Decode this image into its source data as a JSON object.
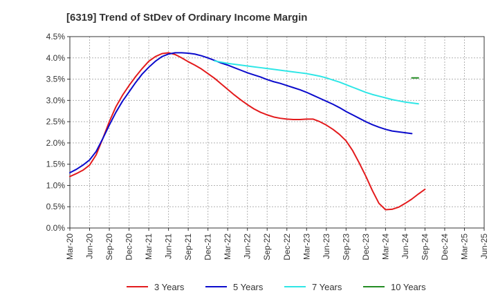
{
  "chart_data": {
    "type": "line",
    "title": "[6319]  Trend of StDev of Ordinary Income Margin",
    "xlabel": "",
    "ylabel": "",
    "x_ticks": [
      "Mar-20",
      "Jun-20",
      "Sep-20",
      "Dec-20",
      "Mar-21",
      "Jun-21",
      "Sep-21",
      "Dec-21",
      "Mar-22",
      "Jun-22",
      "Sep-22",
      "Dec-22",
      "Mar-23",
      "Jun-23",
      "Sep-23",
      "Dec-23",
      "Mar-24",
      "Jun-24",
      "Sep-24",
      "Dec-24",
      "Mar-25",
      "Jun-25"
    ],
    "y_ticks": [
      "0.0%",
      "0.5%",
      "1.0%",
      "1.5%",
      "2.0%",
      "2.5%",
      "3.0%",
      "3.5%",
      "4.0%",
      "4.5%"
    ],
    "ylim": [
      0,
      4.5
    ],
    "grid": true,
    "legend_position": "bottom",
    "series": [
      {
        "name": "3 Years",
        "color": "#e31a1c",
        "start_index": 0,
        "values": [
          1.21,
          1.28,
          1.36,
          1.48,
          1.72,
          2.1,
          2.5,
          2.85,
          3.12,
          3.35,
          3.56,
          3.75,
          3.92,
          4.03,
          4.1,
          4.12,
          4.08,
          4.0,
          3.91,
          3.83,
          3.74,
          3.63,
          3.52,
          3.39,
          3.26,
          3.13,
          3.01,
          2.9,
          2.8,
          2.72,
          2.66,
          2.61,
          2.58,
          2.56,
          2.55,
          2.55,
          2.56,
          2.56,
          2.5,
          2.42,
          2.32,
          2.2,
          2.05,
          1.82,
          1.53,
          1.22,
          0.88,
          0.58,
          0.43,
          0.44,
          0.49,
          0.58,
          0.68,
          0.8,
          0.91
        ]
      },
      {
        "name": "5 Years",
        "color": "#0a0acc",
        "start_index": 0,
        "values": [
          1.3,
          1.38,
          1.48,
          1.6,
          1.8,
          2.1,
          2.42,
          2.72,
          2.98,
          3.2,
          3.42,
          3.62,
          3.78,
          3.92,
          4.03,
          4.09,
          4.12,
          4.12,
          4.11,
          4.09,
          4.05,
          4.0,
          3.94,
          3.88,
          3.83,
          3.77,
          3.71,
          3.65,
          3.6,
          3.55,
          3.49,
          3.44,
          3.4,
          3.35,
          3.3,
          3.25,
          3.19,
          3.12,
          3.05,
          2.98,
          2.91,
          2.83,
          2.74,
          2.66,
          2.58,
          2.5,
          2.43,
          2.37,
          2.32,
          2.28,
          2.26,
          2.24,
          2.22
        ]
      },
      {
        "name": "7 Years",
        "color": "#2ee6e6",
        "start_index": 22,
        "values": [
          3.93,
          3.9,
          3.87,
          3.85,
          3.83,
          3.81,
          3.79,
          3.77,
          3.75,
          3.73,
          3.71,
          3.69,
          3.67,
          3.65,
          3.63,
          3.6,
          3.57,
          3.53,
          3.48,
          3.43,
          3.37,
          3.31,
          3.25,
          3.19,
          3.14,
          3.1,
          3.06,
          3.02,
          2.99,
          2.96,
          2.94,
          2.92
        ]
      },
      {
        "name": "10 Years",
        "color": "#228b22",
        "start_index": 52,
        "values": [
          3.53,
          3.53
        ]
      }
    ]
  }
}
